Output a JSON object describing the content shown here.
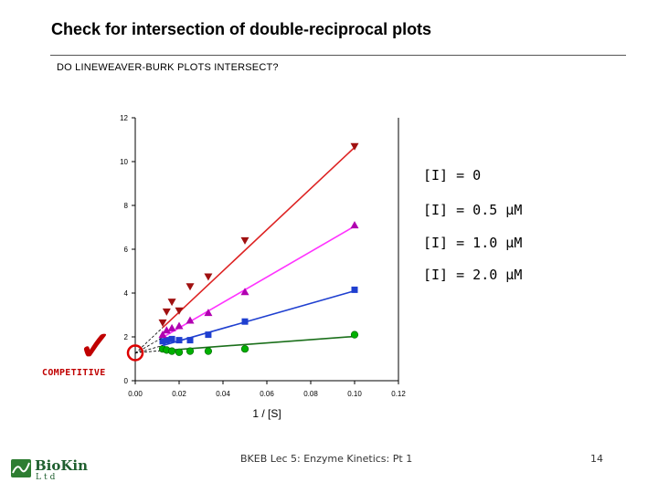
{
  "slide": {
    "title": "Check for intersection of double-reciprocal plots",
    "subtitle": "DO LINEWEAVER-BURK PLOTS INTERSECT?",
    "annotation": "COMPETITIVE",
    "footer": "BKEB Lec 5: Enzyme Kinetics: Pt 1",
    "page": "14",
    "logo_text": "BioKin",
    "logo_sub": "Ltd"
  },
  "legend": {
    "items": [
      "[I] = 0",
      "[I] = 0.5 μM",
      "[I] = 1.0 μM",
      "[I] = 2.0 μM"
    ]
  },
  "chart_data": {
    "type": "scatter",
    "xlabel": "1 / [S]",
    "ylabel": "",
    "xlim": [
      0,
      0.12
    ],
    "ylim": [
      0,
      12
    ],
    "xticks": [
      "0.00",
      "0.02",
      "0.04",
      "0.06",
      "0.08",
      "0.10",
      "0.12"
    ],
    "yticks": [
      "0",
      "2",
      "4",
      "6",
      "8",
      "10",
      "12"
    ],
    "grid": false,
    "legend_position": "right",
    "series": [
      {
        "name": "[I] = 0",
        "color": "#00b000",
        "line_color": "#1a6f1a",
        "marker": "circle",
        "x": [
          0.0125,
          0.0143,
          0.0167,
          0.02,
          0.025,
          0.0333,
          0.05,
          0.1
        ],
        "y": [
          1.45,
          1.4,
          1.35,
          1.3,
          1.35,
          1.35,
          1.45,
          2.1
        ],
        "fit": [
          1.28,
          2.02
        ]
      },
      {
        "name": "[I] = 0.5 μM",
        "color": "#1f3fd0",
        "line_color": "#1f3fd0",
        "marker": "square",
        "x": [
          0.0125,
          0.0143,
          0.0167,
          0.02,
          0.025,
          0.0333,
          0.05,
          0.1
        ],
        "y": [
          1.8,
          1.85,
          1.9,
          1.85,
          1.85,
          2.1,
          2.7,
          4.15
        ],
        "fit": [
          1.25,
          4.1
        ]
      },
      {
        "name": "[I] = 1.0 μM",
        "color": "#b000b0",
        "line_color": "#ff33ff",
        "marker": "triangle-up",
        "x": [
          0.0125,
          0.0143,
          0.0167,
          0.02,
          0.025,
          0.0333,
          0.05,
          0.1
        ],
        "y": [
          2.1,
          2.3,
          2.4,
          2.5,
          2.75,
          3.1,
          4.05,
          7.1
        ],
        "fit": [
          1.25,
          7.05
        ]
      },
      {
        "name": "[I] = 2.0 μM",
        "color": "#a01010",
        "line_color": "#dd2222",
        "marker": "triangle-down",
        "x": [
          0.0125,
          0.0143,
          0.0167,
          0.02,
          0.025,
          0.0333,
          0.05,
          0.1
        ],
        "y": [
          2.65,
          3.15,
          3.6,
          3.2,
          4.3,
          4.75,
          6.4,
          10.7
        ],
        "fit": [
          1.25,
          10.65
        ]
      }
    ],
    "intersection": {
      "x": 0.0,
      "y": 1.27
    }
  }
}
